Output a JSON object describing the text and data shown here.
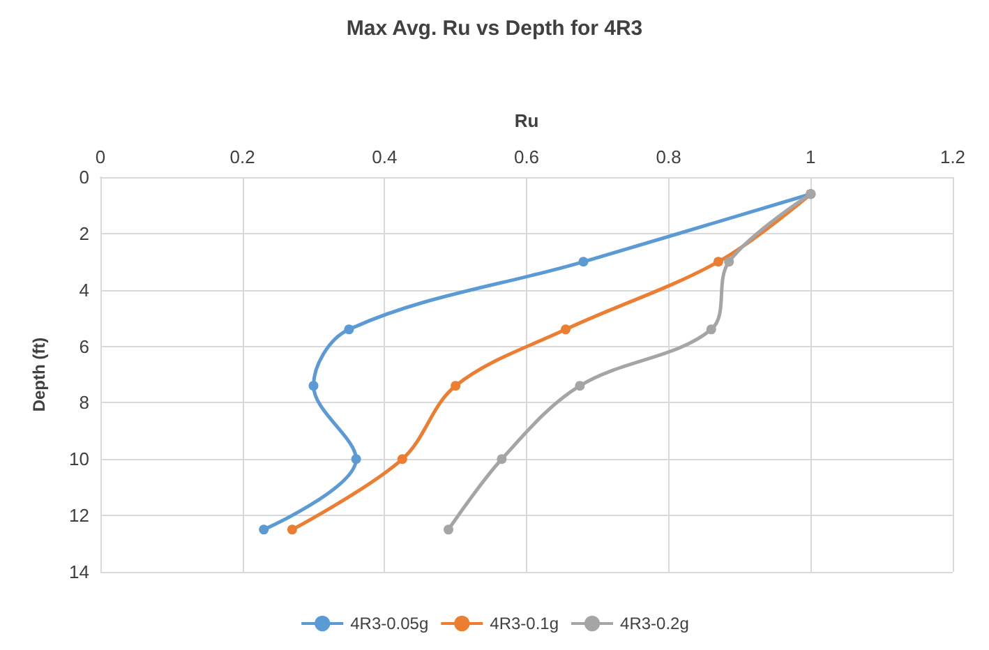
{
  "chart_data": {
    "type": "line",
    "title": "Max Avg. Ru vs Depth for 4R3",
    "xlabel": "Ru",
    "ylabel": "Depth (ft)",
    "xlim": [
      0,
      1.2
    ],
    "xticks": [
      0,
      0.2,
      0.4,
      0.6,
      0.8,
      1,
      1.2
    ],
    "ylim": [
      14,
      0
    ],
    "yticks": [
      0,
      2,
      4,
      6,
      8,
      10,
      12,
      14
    ],
    "grid": true,
    "legend": "bottom",
    "marker": "circle",
    "line_style": "solid",
    "series": [
      {
        "name": "4R3-0.05g",
        "color": "#5b9bd5",
        "x": [
          1.0,
          0.68,
          0.35,
          0.3,
          0.36,
          0.23
        ],
        "values": [
          0.6,
          3,
          5.4,
          7.4,
          10,
          12.5
        ]
      },
      {
        "name": "4R3-0.1g",
        "color": "#ed7d31",
        "x": [
          1.0,
          0.87,
          0.655,
          0.5,
          0.425,
          0.27
        ],
        "values": [
          0.6,
          3,
          5.4,
          7.4,
          10,
          12.5
        ]
      },
      {
        "name": "4R3-0.2g",
        "color": "#a5a5a5",
        "x": [
          1.0,
          0.885,
          0.86,
          0.675,
          0.565,
          0.49
        ],
        "values": [
          0.6,
          3,
          5.4,
          7.4,
          10,
          12.5
        ]
      }
    ]
  }
}
